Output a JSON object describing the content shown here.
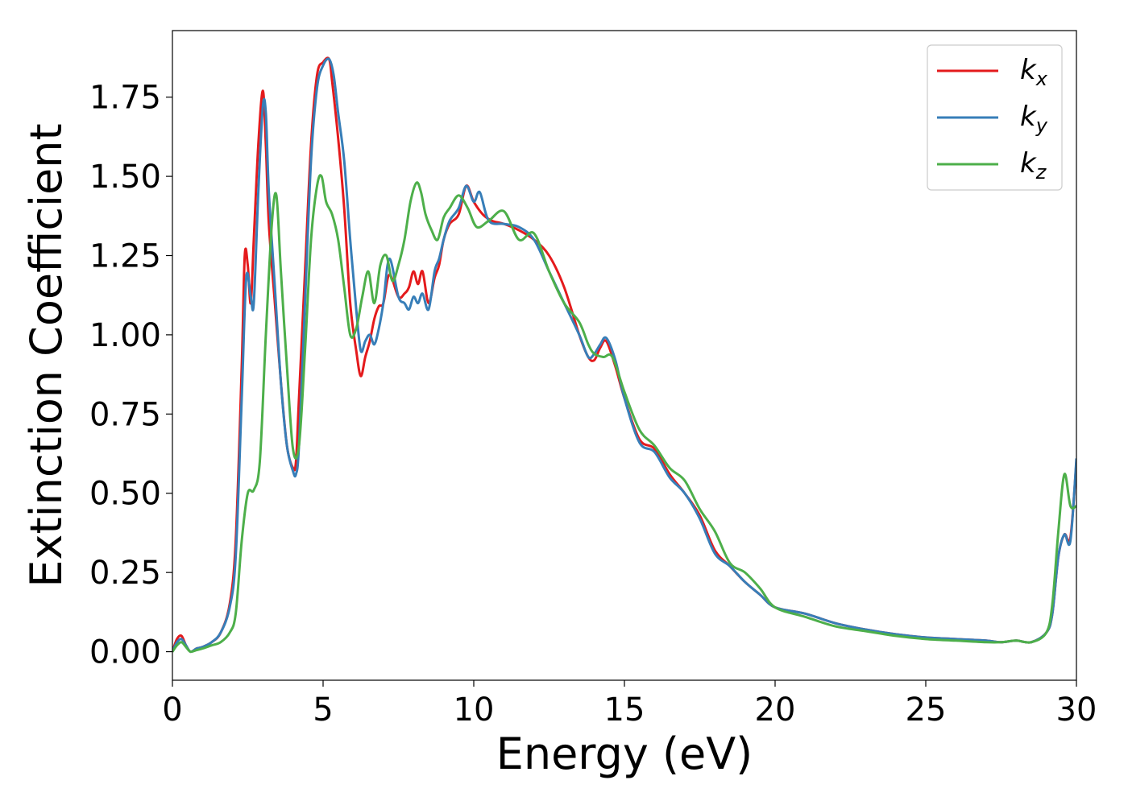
{
  "chart_data": {
    "type": "line",
    "title": "",
    "xlabel": "Energy (eV)",
    "ylabel": "Extinction Coefficient",
    "xlim": [
      0,
      30
    ],
    "ylim": [
      -0.09,
      1.96
    ],
    "xticks": [
      0,
      5,
      10,
      15,
      20,
      25,
      30
    ],
    "yticks": [
      0.0,
      0.25,
      0.5,
      0.75,
      1.0,
      1.25,
      1.5,
      1.75
    ],
    "xtick_labels": [
      "0",
      "5",
      "10",
      "15",
      "20",
      "25",
      "30"
    ],
    "ytick_labels": [
      "0.00",
      "0.25",
      "0.50",
      "0.75",
      "1.00",
      "1.25",
      "1.50",
      "1.75"
    ],
    "grid": false,
    "legend_position": "top-right",
    "series": [
      {
        "name": "k",
        "subscript": "x",
        "color": "#e41a1c",
        "x": [
          0,
          0.15,
          0.3,
          0.45,
          0.6,
          0.8,
          1.0,
          1.3,
          1.6,
          1.9,
          2.1,
          2.3,
          2.4,
          2.5,
          2.6,
          2.7,
          2.85,
          3.0,
          3.1,
          3.2,
          3.4,
          3.6,
          3.8,
          4.0,
          4.1,
          4.2,
          4.4,
          4.6,
          4.8,
          5.0,
          5.2,
          5.3,
          5.5,
          5.7,
          5.9,
          6.1,
          6.25,
          6.4,
          6.55,
          6.7,
          6.85,
          7.0,
          7.2,
          7.5,
          7.7,
          7.85,
          8.0,
          8.15,
          8.3,
          8.5,
          8.7,
          8.85,
          9.0,
          9.2,
          9.5,
          9.75,
          10.0,
          10.3,
          10.6,
          11.0,
          11.5,
          12.0,
          12.5,
          13.0,
          13.5,
          13.8,
          14.0,
          14.2,
          14.4,
          14.7,
          15.0,
          15.5,
          16.0,
          16.5,
          17.0,
          17.5,
          18.0,
          18.5,
          19.0,
          19.5,
          20.0,
          21.0,
          22.0,
          23.0,
          24.0,
          25.0,
          26.0,
          27.0,
          27.5,
          28.0,
          28.5,
          29.0,
          29.2,
          29.4,
          29.6,
          29.8,
          30.0
        ],
        "y": [
          0.0,
          0.04,
          0.05,
          0.02,
          0.0,
          0.01,
          0.015,
          0.03,
          0.06,
          0.15,
          0.35,
          0.9,
          1.25,
          1.22,
          1.1,
          1.3,
          1.6,
          1.77,
          1.6,
          1.35,
          1.1,
          0.85,
          0.65,
          0.58,
          0.6,
          0.8,
          1.2,
          1.6,
          1.82,
          1.86,
          1.87,
          1.8,
          1.62,
          1.4,
          1.1,
          0.95,
          0.87,
          0.93,
          0.98,
          1.05,
          1.09,
          1.1,
          1.19,
          1.12,
          1.13,
          1.15,
          1.2,
          1.16,
          1.2,
          1.1,
          1.18,
          1.22,
          1.3,
          1.35,
          1.38,
          1.47,
          1.42,
          1.38,
          1.36,
          1.35,
          1.33,
          1.3,
          1.25,
          1.15,
          1.0,
          0.93,
          0.92,
          0.96,
          0.98,
          0.9,
          0.8,
          0.67,
          0.64,
          0.56,
          0.5,
          0.43,
          0.32,
          0.27,
          0.22,
          0.18,
          0.14,
          0.12,
          0.09,
          0.07,
          0.055,
          0.045,
          0.04,
          0.035,
          0.03,
          0.035,
          0.03,
          0.06,
          0.12,
          0.3,
          0.37,
          0.36,
          0.6
        ]
      },
      {
        "name": "k",
        "subscript": "y",
        "color": "#377eb8",
        "x": [
          0,
          0.15,
          0.3,
          0.45,
          0.6,
          0.8,
          1.0,
          1.3,
          1.6,
          1.9,
          2.1,
          2.3,
          2.45,
          2.6,
          2.7,
          2.85,
          3.0,
          3.1,
          3.2,
          3.4,
          3.6,
          3.8,
          4.0,
          4.1,
          4.2,
          4.4,
          4.6,
          4.8,
          5.0,
          5.2,
          5.35,
          5.5,
          5.7,
          5.9,
          6.1,
          6.25,
          6.4,
          6.55,
          6.7,
          6.85,
          7.0,
          7.2,
          7.5,
          7.7,
          7.85,
          8.0,
          8.15,
          8.3,
          8.5,
          8.7,
          8.85,
          9.0,
          9.2,
          9.5,
          9.75,
          10.0,
          10.2,
          10.5,
          11.0,
          11.5,
          12.0,
          12.5,
          13.0,
          13.5,
          13.8,
          14.0,
          14.2,
          14.4,
          14.7,
          15.0,
          15.5,
          16.0,
          16.5,
          17.0,
          17.5,
          18.0,
          18.5,
          19.0,
          19.5,
          20.0,
          21.0,
          22.0,
          23.0,
          24.0,
          25.0,
          26.0,
          27.0,
          27.5,
          28.0,
          28.5,
          29.0,
          29.2,
          29.4,
          29.6,
          29.8,
          30.0
        ],
        "y": [
          0.0,
          0.03,
          0.04,
          0.02,
          0.0,
          0.01,
          0.015,
          0.03,
          0.06,
          0.14,
          0.3,
          0.8,
          1.18,
          1.12,
          1.1,
          1.45,
          1.72,
          1.7,
          1.45,
          1.15,
          0.85,
          0.65,
          0.57,
          0.56,
          0.65,
          1.1,
          1.55,
          1.78,
          1.85,
          1.87,
          1.82,
          1.7,
          1.55,
          1.3,
          1.08,
          0.95,
          0.98,
          1.0,
          0.97,
          1.02,
          1.1,
          1.24,
          1.12,
          1.1,
          1.08,
          1.12,
          1.1,
          1.13,
          1.08,
          1.2,
          1.24,
          1.3,
          1.36,
          1.4,
          1.47,
          1.42,
          1.45,
          1.36,
          1.35,
          1.34,
          1.3,
          1.2,
          1.1,
          1.0,
          0.93,
          0.94,
          0.97,
          0.99,
          0.92,
          0.8,
          0.66,
          0.63,
          0.55,
          0.5,
          0.42,
          0.31,
          0.27,
          0.22,
          0.18,
          0.14,
          0.12,
          0.09,
          0.07,
          0.055,
          0.045,
          0.04,
          0.035,
          0.03,
          0.035,
          0.03,
          0.06,
          0.12,
          0.3,
          0.37,
          0.35,
          0.61
        ]
      },
      {
        "name": "k",
        "subscript": "z",
        "color": "#4daf4a",
        "x": [
          0,
          0.15,
          0.3,
          0.45,
          0.6,
          0.8,
          1.0,
          1.3,
          1.6,
          1.9,
          2.1,
          2.3,
          2.5,
          2.7,
          2.9,
          3.1,
          3.3,
          3.45,
          3.6,
          3.8,
          4.0,
          4.2,
          4.4,
          4.6,
          4.8,
          4.95,
          5.1,
          5.3,
          5.5,
          5.7,
          5.9,
          6.1,
          6.3,
          6.5,
          6.7,
          6.9,
          7.1,
          7.3,
          7.5,
          7.7,
          7.9,
          8.1,
          8.25,
          8.4,
          8.6,
          8.8,
          9.0,
          9.2,
          9.5,
          9.8,
          10.1,
          10.5,
          11.0,
          11.5,
          12.0,
          12.5,
          13.0,
          13.5,
          13.8,
          14.0,
          14.3,
          14.6,
          15.0,
          15.5,
          16.0,
          16.5,
          17.0,
          17.5,
          18.0,
          18.5,
          19.0,
          19.5,
          20.0,
          21.0,
          22.0,
          23.0,
          24.0,
          25.0,
          26.0,
          27.0,
          27.5,
          28.0,
          28.5,
          29.0,
          29.2,
          29.4,
          29.6,
          29.8,
          30.0
        ],
        "y": [
          0.0,
          0.02,
          0.03,
          0.015,
          0.0,
          0.005,
          0.01,
          0.02,
          0.03,
          0.06,
          0.12,
          0.35,
          0.5,
          0.51,
          0.6,
          1.0,
          1.35,
          1.44,
          1.2,
          0.9,
          0.64,
          0.65,
          0.95,
          1.3,
          1.47,
          1.5,
          1.42,
          1.38,
          1.3,
          1.15,
          1.0,
          1.02,
          1.12,
          1.2,
          1.1,
          1.22,
          1.25,
          1.17,
          1.22,
          1.3,
          1.42,
          1.48,
          1.45,
          1.38,
          1.33,
          1.3,
          1.37,
          1.4,
          1.44,
          1.4,
          1.34,
          1.36,
          1.39,
          1.3,
          1.32,
          1.2,
          1.1,
          1.04,
          0.97,
          0.94,
          0.93,
          0.93,
          0.82,
          0.7,
          0.65,
          0.58,
          0.54,
          0.45,
          0.38,
          0.28,
          0.25,
          0.2,
          0.14,
          0.11,
          0.08,
          0.065,
          0.05,
          0.04,
          0.035,
          0.03,
          0.03,
          0.035,
          0.03,
          0.06,
          0.15,
          0.38,
          0.56,
          0.46,
          0.46
        ]
      }
    ]
  }
}
